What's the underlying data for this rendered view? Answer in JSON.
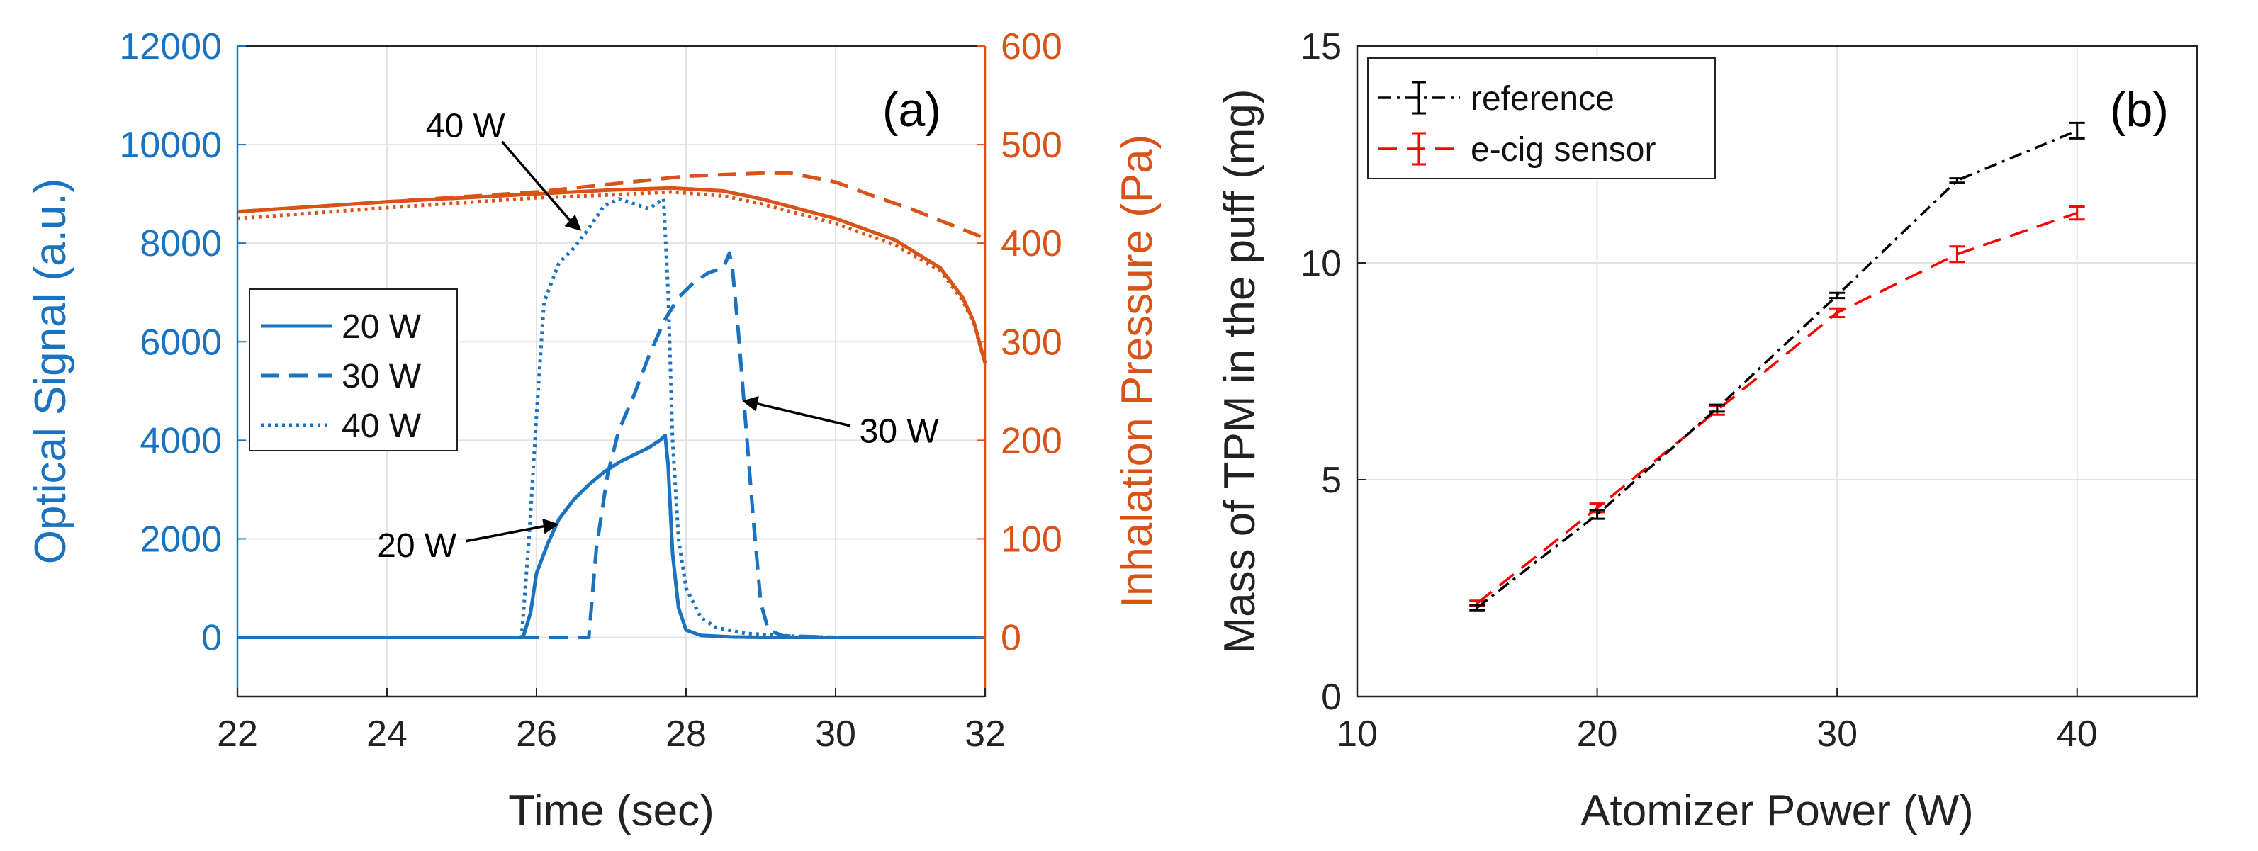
{
  "chart_data": [
    {
      "panel": "a",
      "type": "line",
      "panel_label": "(a)",
      "xlabel": "Time (sec)",
      "ylabel_left": "Optical Signal (a.u.)",
      "ylabel_right": "Inhalation Pressure (Pa)",
      "xlim": [
        22,
        32
      ],
      "ylim_left": [
        -1200,
        12000
      ],
      "ylim_right": [
        -60,
        600
      ],
      "xticks": [
        22,
        24,
        26,
        28,
        30,
        32
      ],
      "yticks_left": [
        0,
        2000,
        4000,
        6000,
        8000,
        10000,
        12000
      ],
      "yticks_right": [
        0,
        100,
        200,
        300,
        400,
        500,
        600
      ],
      "grid": true,
      "legend_position": "center-left",
      "colors": {
        "optical": "#1a73c1",
        "pressure": "#d95319",
        "axis_text": "#222222"
      },
      "series_optical": [
        {
          "name": "20 W",
          "style": "solid",
          "x": [
            22,
            25.82,
            25.92,
            26.0,
            26.15,
            26.3,
            26.5,
            26.7,
            26.9,
            27.1,
            27.3,
            27.5,
            27.65,
            27.72,
            27.76,
            27.82,
            27.9,
            28.0,
            28.2,
            28.6,
            29,
            30,
            31,
            32
          ],
          "y": [
            0,
            0,
            500,
            1300,
            1900,
            2400,
            2800,
            3100,
            3350,
            3550,
            3700,
            3850,
            4000,
            4100,
            3500,
            1700,
            600,
            150,
            40,
            10,
            0,
            0,
            0,
            0
          ]
        },
        {
          "name": "30 W",
          "style": "dashed",
          "x": [
            22,
            26.7,
            26.8,
            26.95,
            27.1,
            27.3,
            27.5,
            27.7,
            27.9,
            28.1,
            28.3,
            28.5,
            28.58,
            28.62,
            28.7,
            28.8,
            28.9,
            29.0,
            29.1,
            29.3,
            30,
            31,
            32
          ],
          "y": [
            0,
            0,
            1800,
            3300,
            4200,
            4900,
            5700,
            6400,
            6900,
            7200,
            7400,
            7500,
            7800,
            7500,
            6200,
            4300,
            2400,
            700,
            150,
            30,
            0,
            0,
            0
          ]
        },
        {
          "name": "40 W",
          "style": "dotted",
          "x": [
            22,
            25.8,
            25.9,
            26.0,
            26.1,
            26.3,
            26.5,
            26.7,
            26.9,
            27.1,
            27.3,
            27.5,
            27.7,
            27.76,
            27.82,
            27.9,
            28.0,
            28.2,
            28.4,
            28.8,
            29.5,
            30,
            31,
            32
          ],
          "y": [
            0,
            0,
            2000,
            4500,
            6800,
            7600,
            7900,
            8300,
            8750,
            8900,
            8800,
            8700,
            8900,
            7000,
            4000,
            2000,
            1000,
            400,
            200,
            80,
            20,
            0,
            0,
            0
          ]
        }
      ],
      "series_pressure": [
        {
          "name": "20 W",
          "style": "solid",
          "x": [
            22,
            24,
            26,
            27,
            27.8,
            28.5,
            29,
            30,
            30.8,
            31.4,
            31.7,
            31.85,
            32
          ],
          "y": [
            432,
            442,
            450,
            454,
            456,
            453,
            445,
            425,
            403,
            375,
            345,
            320,
            278
          ]
        },
        {
          "name": "30 W",
          "style": "dashed",
          "x": [
            22,
            24,
            26,
            27,
            28,
            29,
            29.4,
            30,
            30.5,
            31,
            31.5,
            32
          ],
          "y": [
            432,
            442,
            452,
            460,
            468,
            471,
            471,
            462,
            448,
            435,
            420,
            405
          ]
        },
        {
          "name": "40 W",
          "style": "dotted",
          "x": [
            22,
            24,
            26,
            27,
            27.8,
            28.5,
            29,
            30,
            30.8,
            31.4,
            31.7,
            31.85,
            32
          ],
          "y": [
            425,
            436,
            446,
            449,
            452,
            448,
            440,
            420,
            398,
            372,
            342,
            318,
            278
          ]
        }
      ],
      "annotations": [
        {
          "text": "40 W",
          "text_x": 25.05,
          "text_y": 10400,
          "arrow_x": 26.6,
          "arrow_y": 8250
        },
        {
          "text": "30 W",
          "text_x": 30.85,
          "text_y": 4200,
          "arrow_x": 28.75,
          "arrow_y": 4800
        },
        {
          "text": "20 W",
          "text_x": 24.4,
          "text_y": 1880,
          "arrow_x": 26.3,
          "arrow_y": 2300
        }
      ]
    },
    {
      "panel": "b",
      "type": "line",
      "panel_label": "(b)",
      "xlabel": "Atomizer Power (W)",
      "ylabel": "Mass of TPM in the puff (mg)",
      "xlim": [
        10,
        45
      ],
      "ylim": [
        0,
        15
      ],
      "xticks": [
        10,
        20,
        30,
        40
      ],
      "yticks": [
        0,
        5,
        10,
        15
      ],
      "grid": true,
      "legend_position": "top-left",
      "series": [
        {
          "name": "reference",
          "color": "#000000",
          "style": "dash-dot",
          "x": [
            15,
            20,
            25,
            30,
            35,
            40
          ],
          "y": [
            2.05,
            4.2,
            6.65,
            9.25,
            11.9,
            13.05
          ],
          "err": [
            0.06,
            0.1,
            0.08,
            0.06,
            0.05,
            0.18
          ]
        },
        {
          "name": "e-cig sensor",
          "color": "#ff0000",
          "style": "dashed",
          "x": [
            15,
            20,
            25,
            30,
            35,
            40
          ],
          "y": [
            2.15,
            4.35,
            6.6,
            8.85,
            10.2,
            11.15
          ],
          "err": [
            0.06,
            0.1,
            0.1,
            0.1,
            0.18,
            0.15
          ]
        }
      ]
    }
  ]
}
